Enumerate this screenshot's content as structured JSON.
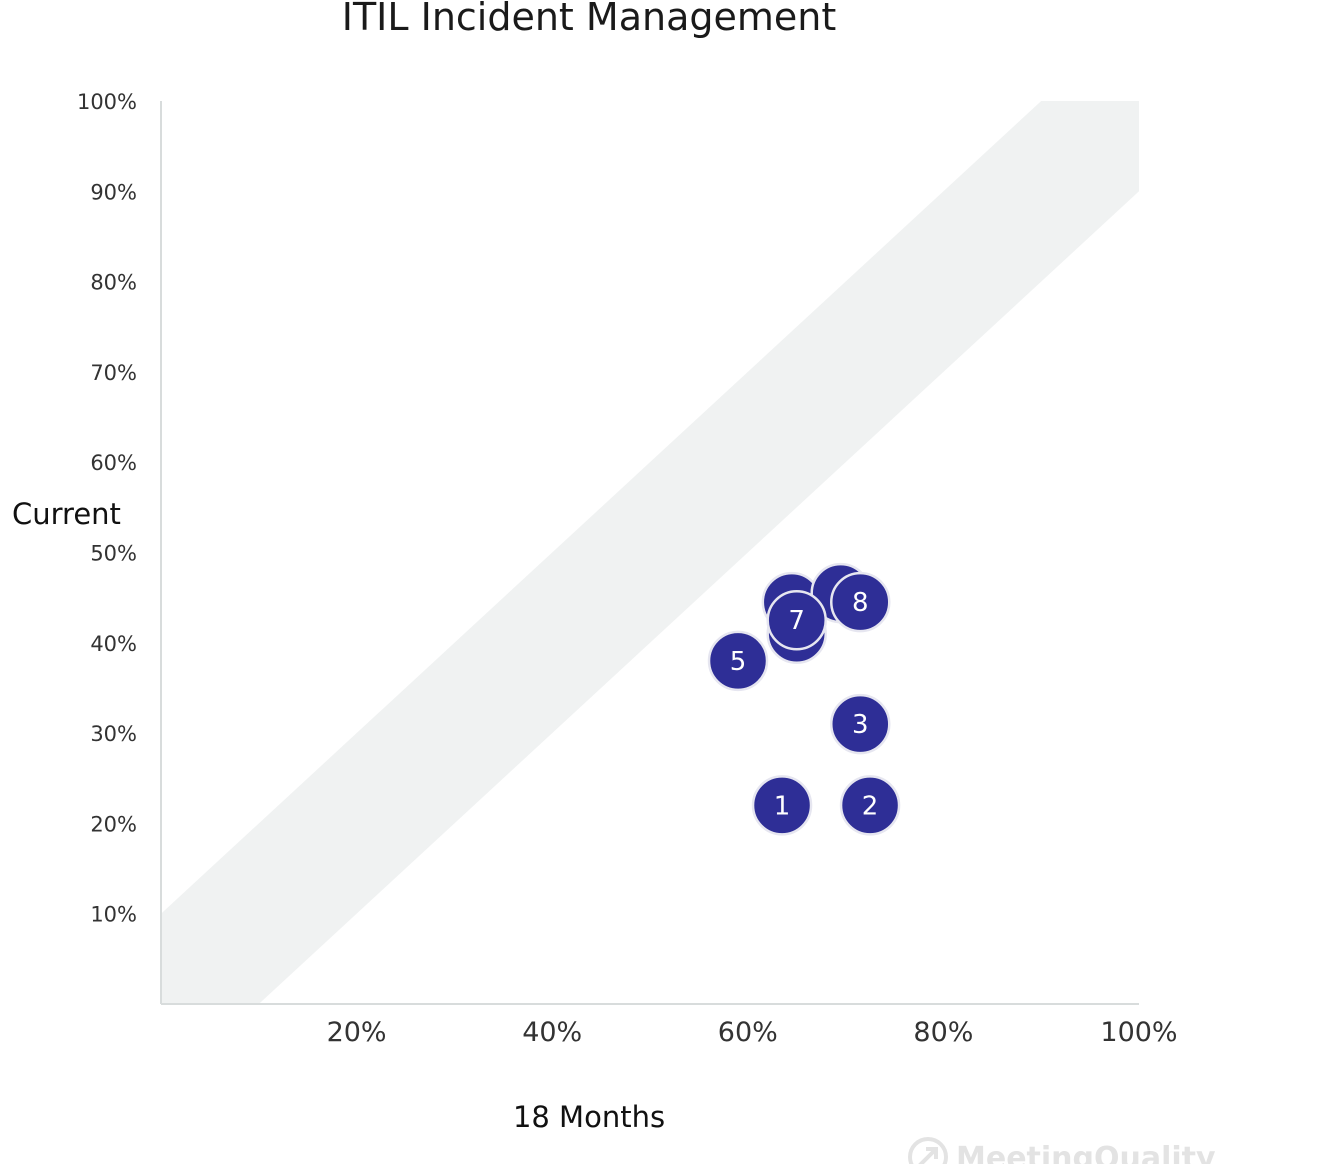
{
  "chart_data": {
    "type": "scatter",
    "title": "ITIL Incident Management",
    "xlabel": "18 Months",
    "ylabel": "Current",
    "xlim": [
      0,
      100
    ],
    "ylim": [
      0,
      100
    ],
    "x_ticks": [
      {
        "value": 20,
        "label": "20%"
      },
      {
        "value": 40,
        "label": "40%"
      },
      {
        "value": 60,
        "label": "60%"
      },
      {
        "value": 80,
        "label": "80%"
      },
      {
        "value": 100,
        "label": "100%"
      }
    ],
    "y_ticks": [
      {
        "value": 10,
        "label": "10%"
      },
      {
        "value": 20,
        "label": "20%"
      },
      {
        "value": 30,
        "label": "30%"
      },
      {
        "value": 40,
        "label": "40%"
      },
      {
        "value": 50,
        "label": "50%"
      },
      {
        "value": 60,
        "label": "60%"
      },
      {
        "value": 70,
        "label": "70%"
      },
      {
        "value": 80,
        "label": "80%"
      },
      {
        "value": 90,
        "label": "90%"
      },
      {
        "value": 100,
        "label": "100%"
      }
    ],
    "band": {
      "upper": [
        [
          0,
          10
        ],
        [
          90,
          100
        ]
      ],
      "lower": [
        [
          10,
          0
        ],
        [
          100,
          90
        ]
      ]
    },
    "points": [
      {
        "label": "",
        "x": 64.5,
        "y": 44.5
      },
      {
        "label": "",
        "x": 69.5,
        "y": 45.5
      },
      {
        "label": "",
        "x": 65.0,
        "y": 41.0
      },
      {
        "label": "1",
        "x": 63.5,
        "y": 22.0
      },
      {
        "label": "2",
        "x": 72.5,
        "y": 22.0
      },
      {
        "label": "3",
        "x": 71.5,
        "y": 31.0
      },
      {
        "label": "5",
        "x": 59.0,
        "y": 38.0
      },
      {
        "label": "7",
        "x": 65.0,
        "y": 42.5
      },
      {
        "label": "8",
        "x": 71.5,
        "y": 44.5
      }
    ],
    "colors": {
      "point_fill": "#2e2e96",
      "point_stroke": "#e6e6f0",
      "band_fill": "#f0f2f2",
      "axis": "#d8dcdc"
    },
    "grid": false,
    "legend": "none"
  },
  "watermark": {
    "text": "MeetingQuality"
  }
}
